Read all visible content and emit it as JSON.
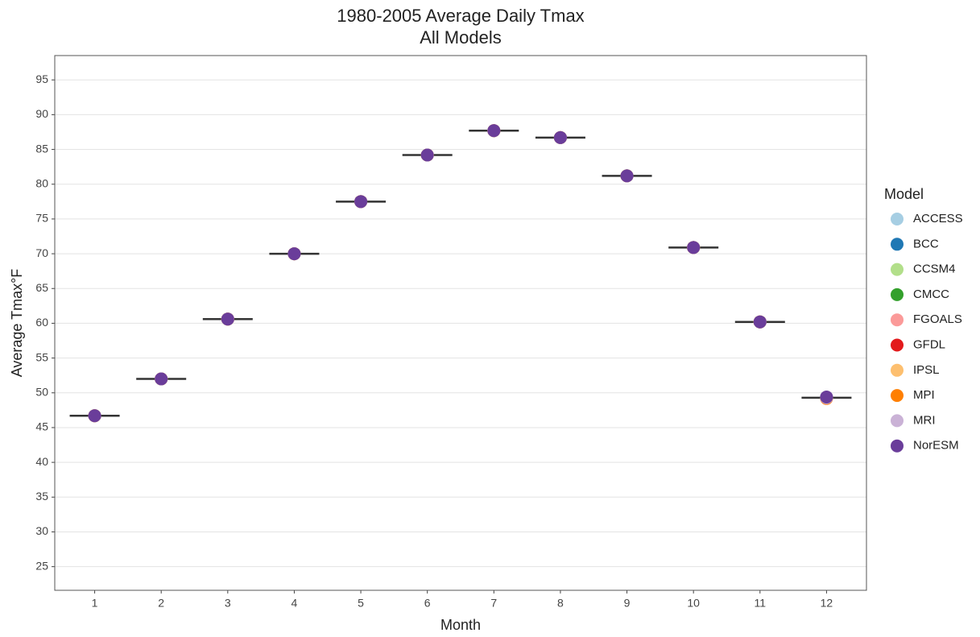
{
  "chart_data": {
    "type": "dot",
    "title": "1980-2005 Average Daily Tmax",
    "subtitle": "All Models",
    "x_label": "Month",
    "y_label": "Average Tmax°F",
    "legend_title": "Model",
    "x": [
      1,
      2,
      3,
      4,
      5,
      6,
      7,
      8,
      9,
      10,
      11,
      12
    ],
    "xlim": [
      0.4,
      12.6
    ],
    "xticks": [
      1,
      2,
      3,
      4,
      5,
      6,
      7,
      8,
      9,
      10,
      11,
      12
    ],
    "ylim": [
      21.6,
      98.5
    ],
    "yticks": [
      25,
      30,
      35,
      40,
      45,
      50,
      55,
      60,
      65,
      70,
      75,
      80,
      85,
      90,
      95
    ],
    "grid": true,
    "legend": "right",
    "medians": [
      46.7,
      52.0,
      60.6,
      70.0,
      77.5,
      84.2,
      87.7,
      86.7,
      81.2,
      70.9,
      60.2,
      49.3
    ],
    "series": [
      {
        "name": "ACCESS",
        "color": "#a6cee3",
        "values": [
          46.7,
          52.0,
          60.6,
          70.0,
          77.5,
          84.2,
          87.7,
          86.7,
          81.2,
          70.9,
          60.2,
          49.3
        ]
      },
      {
        "name": "BCC",
        "color": "#1f78b4",
        "values": [
          46.7,
          52.0,
          60.6,
          70.0,
          77.5,
          84.2,
          87.7,
          86.7,
          81.2,
          70.9,
          60.2,
          49.3
        ]
      },
      {
        "name": "CCSM4",
        "color": "#b2df8a",
        "values": [
          46.7,
          52.0,
          60.6,
          70.0,
          77.5,
          84.2,
          87.7,
          86.7,
          81.2,
          70.9,
          60.2,
          49.3
        ]
      },
      {
        "name": "CMCC",
        "color": "#33a02c",
        "values": [
          46.7,
          52.0,
          60.6,
          70.0,
          77.5,
          84.2,
          87.7,
          86.7,
          81.2,
          70.9,
          60.2,
          49.3
        ]
      },
      {
        "name": "FGOALS",
        "color": "#fb9a99",
        "values": [
          46.7,
          52.0,
          60.6,
          70.0,
          77.5,
          84.2,
          87.7,
          86.7,
          81.2,
          70.9,
          60.2,
          49.3
        ]
      },
      {
        "name": "GFDL",
        "color": "#e31a1c",
        "values": [
          46.7,
          52.0,
          60.6,
          70.0,
          77.5,
          84.2,
          87.7,
          86.7,
          81.2,
          70.9,
          60.2,
          49.2
        ]
      },
      {
        "name": "IPSL",
        "color": "#fdbf6f",
        "values": [
          46.7,
          52.0,
          60.6,
          70.0,
          77.5,
          84.2,
          87.7,
          86.7,
          81.2,
          70.9,
          60.2,
          49.3
        ]
      },
      {
        "name": "MPI",
        "color": "#ff7f00",
        "values": [
          46.7,
          52.0,
          60.6,
          70.0,
          77.5,
          84.2,
          87.7,
          86.7,
          81.2,
          70.9,
          60.2,
          49.2
        ]
      },
      {
        "name": "MRI",
        "color": "#cab2d6",
        "values": [
          46.7,
          52.0,
          60.6,
          70.0,
          77.5,
          84.2,
          87.7,
          86.7,
          81.2,
          70.9,
          60.2,
          49.3
        ]
      },
      {
        "name": "NorESM",
        "color": "#6a3d9a",
        "values": [
          46.7,
          52.0,
          60.6,
          70.0,
          77.5,
          84.2,
          87.7,
          86.7,
          81.2,
          70.9,
          60.2,
          49.4
        ]
      }
    ]
  }
}
